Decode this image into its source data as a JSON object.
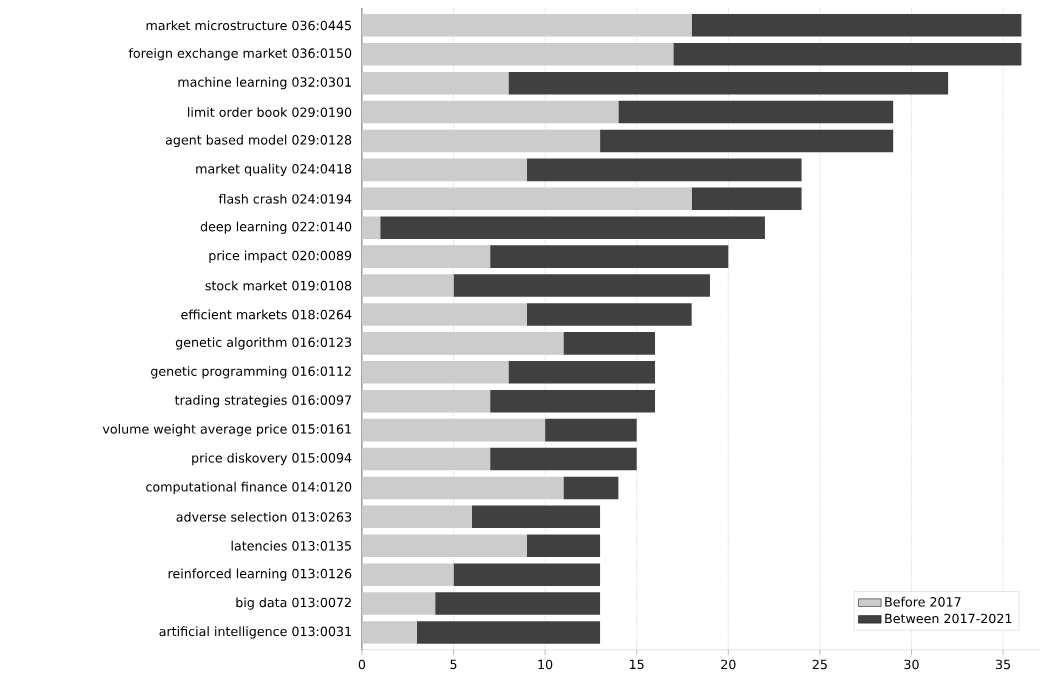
{
  "chart_data": {
    "type": "bar",
    "orientation": "horizontal",
    "stacked": true,
    "categories": [
      "market microstructure 036:0445",
      "foreign exchange market 036:0150",
      "machine learning 032:0301",
      "limit order book 029:0190",
      "agent based model 029:0128",
      "market quality 024:0418",
      "flash crash 024:0194",
      "deep learning 022:0140",
      "price impact 020:0089",
      "stock market 019:0108",
      "efficient markets 018:0264",
      "genetic algorithm 016:0123",
      "genetic programming 016:0112",
      "trading strategies 016:0097",
      "volume weight average price 015:0161",
      "price diskovery 015:0094",
      "computational finance 014:0120",
      "adverse selection 013:0263",
      "latencies 013:0135",
      "reinforced learning 013:0126",
      "big data 013:0072",
      "artificial intelligence 013:0031"
    ],
    "series": [
      {
        "name": "Before 2017",
        "color": "#cccccc",
        "values": [
          18,
          17,
          8,
          14,
          13,
          9,
          18,
          1,
          7,
          5,
          9,
          11,
          8,
          7,
          10,
          7,
          11,
          6,
          9,
          5,
          4,
          3
        ]
      },
      {
        "name": "Between 2017-2021",
        "color": "#404040",
        "values": [
          18,
          19,
          24,
          15,
          16,
          15,
          6,
          21,
          13,
          14,
          9,
          5,
          8,
          9,
          5,
          8,
          3,
          7,
          4,
          8,
          9,
          10
        ]
      }
    ],
    "xlim": [
      0,
      37
    ],
    "xticks": [
      0,
      5,
      10,
      15,
      20,
      25,
      30,
      35
    ],
    "grid": "x",
    "legend": "bottom right"
  }
}
